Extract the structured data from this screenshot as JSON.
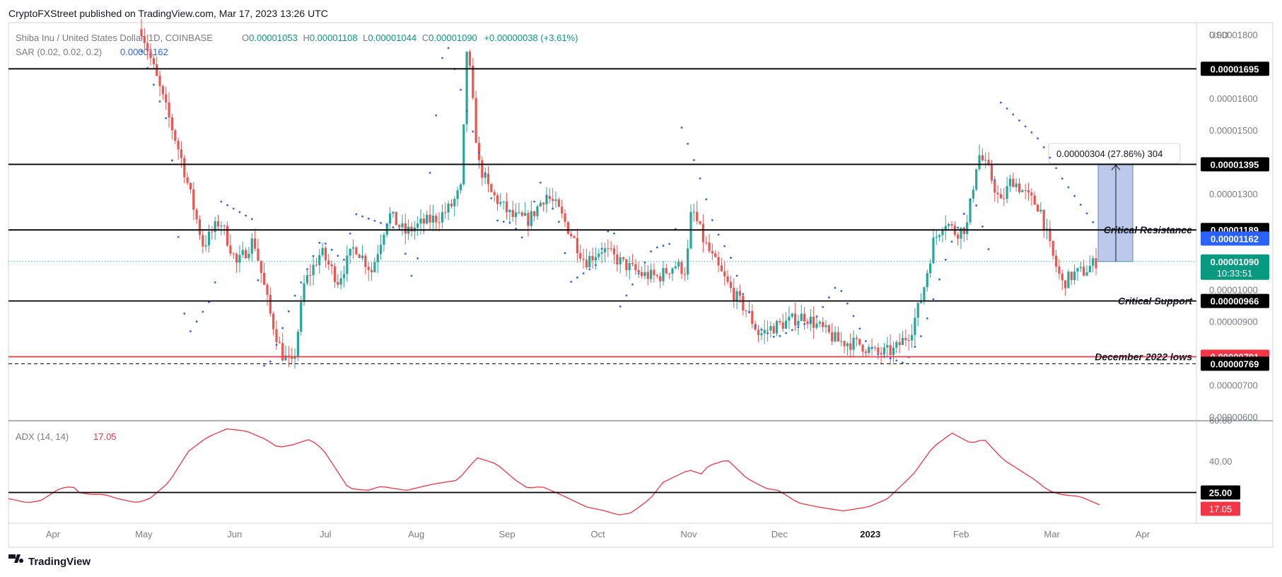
{
  "header": {
    "published": "CryptoFXStreet published on TradingView.com, Mar 17, 2023 13:26 UTC"
  },
  "legend": {
    "symbol": "Shiba Inu / United States Dollar, 1D, COINBASE",
    "o_label": "O",
    "o": "0.00001053",
    "h_label": "H",
    "h": "0.00001108",
    "l_label": "L",
    "l": "0.00001044",
    "c_label": "C",
    "c": "0.00001090",
    "change": "+0.00000038 (+3.61%)",
    "sar_label": "SAR (0.02, 0.02, 0.2)",
    "sar_value": "0.00001162",
    "adx_label": "ADX (14, 14)",
    "adx_value": "17.05"
  },
  "footer": {
    "brand": "TradingView"
  },
  "colors": {
    "up": "#26a69a",
    "down": "#ef5350",
    "sar": "#2962ff",
    "adx": "#f23645",
    "tag_black": "#000000",
    "tag_red": "#f23645",
    "tag_blue": "#2962ff",
    "tag_green": "#089981",
    "box_fill": "#b2c0e6"
  },
  "chart_data": [
    {
      "type": "candlestick",
      "title": "",
      "currency": "USD",
      "y_scale": "linear",
      "ylim": [
        5.9e-06,
        1.84e-05
      ],
      "x_ticks": [
        "Apr",
        "May",
        "Jun",
        "Jul",
        "Aug",
        "Sep",
        "Oct",
        "Nov",
        "Dec",
        "2023",
        "Feb",
        "Mar",
        "Apr"
      ],
      "y_ticks": [
        "0.00001800",
        "0.00001600",
        "0.00001500",
        "0.00001300",
        "0.00001000",
        "0.00000900",
        "0.00000700",
        "0.00000600"
      ],
      "last_price": "0.00001090",
      "countdown": "10:33:51",
      "levels": [
        {
          "value": 1.695e-05,
          "label": "0.00001695",
          "style": "solid",
          "color": "#000000",
          "annotation": ""
        },
        {
          "value": 1.395e-05,
          "label": "0.00001395",
          "style": "solid",
          "color": "#000000",
          "annotation": ""
        },
        {
          "value": 1.189e-05,
          "label": "0.00001189",
          "style": "solid",
          "color": "#000000",
          "annotation": "Critical Resistance"
        },
        {
          "value": 9.66e-06,
          "label": "0.00000966",
          "style": "solid",
          "color": "#000000",
          "annotation": "Critical Support"
        },
        {
          "value": 7.91e-06,
          "label": "0.00000791",
          "style": "solid",
          "color": "#f23645",
          "annotation": "December 2022 lows"
        },
        {
          "value": 7.69e-06,
          "label": "0.00000769",
          "style": "dashed",
          "color": "#000000",
          "annotation": ""
        }
      ],
      "sar_tag": "0.00001162",
      "measure": {
        "from": 1.09e-05,
        "to": 1.395e-05,
        "label": "0.00000304 (27.86%) 304"
      },
      "series": [
        {
          "name": "SHIBUSD",
          "kind": "ohlc",
          "trend": [
            [
              0,
              18.2
            ],
            [
              0.035,
              14.2
            ],
            [
              0.055,
              11.4
            ],
            [
              0.07,
              12.2
            ],
            [
              0.085,
              10.8
            ],
            [
              0.1,
              11.6
            ],
            [
              0.115,
              9.2
            ],
            [
              0.125,
              8.0
            ],
            [
              0.135,
              7.6
            ],
            [
              0.145,
              10.2
            ],
            [
              0.16,
              11.2
            ],
            [
              0.175,
              10.3
            ],
            [
              0.19,
              11.4
            ],
            [
              0.205,
              10.6
            ],
            [
              0.22,
              12.4
            ],
            [
              0.235,
              11.8
            ],
            [
              0.25,
              12.1
            ],
            [
              0.265,
              12.3
            ],
            [
              0.275,
              12.6
            ],
            [
              0.285,
              13.2
            ],
            [
              0.29,
              17.8
            ],
            [
              0.3,
              14.0
            ],
            [
              0.31,
              13.1
            ],
            [
              0.33,
              12.3
            ],
            [
              0.345,
              12.2
            ],
            [
              0.36,
              13.0
            ],
            [
              0.37,
              12.6
            ],
            [
              0.385,
              11.6
            ],
            [
              0.395,
              10.9
            ],
            [
              0.41,
              11.3
            ],
            [
              0.43,
              10.8
            ],
            [
              0.445,
              10.5
            ],
            [
              0.46,
              10.4
            ],
            [
              0.475,
              10.8
            ],
            [
              0.485,
              10.6
            ],
            [
              0.49,
              12.6
            ],
            [
              0.5,
              11.6
            ],
            [
              0.51,
              10.9
            ],
            [
              0.525,
              10.0
            ],
            [
              0.54,
              9.3
            ],
            [
              0.55,
              8.6
            ],
            [
              0.56,
              8.8
            ],
            [
              0.575,
              9.0
            ],
            [
              0.59,
              9.2
            ],
            [
              0.605,
              8.8
            ],
            [
              0.62,
              8.4
            ],
            [
              0.64,
              8.3
            ],
            [
              0.655,
              8.0
            ],
            [
              0.67,
              8.1
            ],
            [
              0.685,
              8.7
            ],
            [
              0.695,
              9.8
            ],
            [
              0.705,
              11.5
            ],
            [
              0.715,
              12.2
            ],
            [
              0.725,
              11.8
            ],
            [
              0.735,
              12.0
            ],
            [
              0.745,
              14.3
            ],
            [
              0.755,
              13.7
            ],
            [
              0.765,
              12.7
            ],
            [
              0.775,
              13.5
            ],
            [
              0.79,
              12.9
            ],
            [
              0.8,
              12.6
            ],
            [
              0.81,
              11.2
            ],
            [
              0.82,
              10.2
            ],
            [
              0.83,
              10.5
            ],
            [
              0.84,
              10.6
            ],
            [
              0.85,
              10.9
            ]
          ]
        },
        {
          "name": "SAR",
          "kind": "dots",
          "trend": [
            [
              0,
              17.5
            ],
            [
              0.025,
              15.1
            ],
            [
              0.04,
              8.5
            ],
            [
              0.065,
              9.9
            ],
            [
              0.07,
              12.8
            ],
            [
              0.1,
              12.2
            ],
            [
              0.11,
              7.3
            ],
            [
              0.135,
              9.7
            ],
            [
              0.16,
              11.6
            ],
            [
              0.18,
              10.9
            ],
            [
              0.19,
              12.4
            ],
            [
              0.23,
              11.9
            ],
            [
              0.24,
              10.4
            ],
            [
              0.25,
              11.4
            ],
            [
              0.27,
              18.0
            ],
            [
              0.295,
              15.0
            ],
            [
              0.31,
              13.2
            ],
            [
              0.315,
              12.2
            ],
            [
              0.33,
              12.1
            ],
            [
              0.34,
              11.6
            ],
            [
              0.355,
              13.4
            ],
            [
              0.375,
              11.9
            ],
            [
              0.38,
              10.2
            ],
            [
              0.405,
              10.8
            ],
            [
              0.42,
              12.3
            ],
            [
              0.425,
              9.4
            ],
            [
              0.455,
              11.3
            ],
            [
              0.475,
              11.5
            ],
            [
              0.48,
              15.2
            ],
            [
              0.495,
              13.8
            ],
            [
              0.51,
              12.0
            ],
            [
              0.525,
              11.0
            ],
            [
              0.545,
              8.9
            ],
            [
              0.565,
              8.5
            ],
            [
              0.6,
              9.1
            ],
            [
              0.62,
              10.2
            ],
            [
              0.645,
              8.4
            ],
            [
              0.655,
              8.0
            ],
            [
              0.68,
              7.7
            ],
            [
              0.695,
              8.6
            ],
            [
              0.705,
              9.7
            ],
            [
              0.72,
              11.4
            ],
            [
              0.74,
              13.0
            ],
            [
              0.745,
              12.5
            ],
            [
              0.755,
              11.2
            ],
            [
              0.765,
              15.9
            ],
            [
              0.8,
              14.7
            ],
            [
              0.82,
              13.5
            ],
            [
              0.85,
              12.0
            ]
          ]
        },
        {
          "name": "ADX",
          "kind": "line",
          "trend": [
            [
              0,
              22
            ],
            [
              0.015,
              20
            ],
            [
              0.025,
              21
            ],
            [
              0.04,
              27
            ],
            [
              0.05,
              28
            ],
            [
              0.055,
              25
            ],
            [
              0.065,
              24
            ],
            [
              0.075,
              24
            ],
            [
              0.085,
              22
            ],
            [
              0.1,
              20
            ],
            [
              0.11,
              22
            ],
            [
              0.125,
              30
            ],
            [
              0.14,
              45
            ],
            [
              0.155,
              52
            ],
            [
              0.17,
              56
            ],
            [
              0.185,
              55
            ],
            [
              0.2,
              51
            ],
            [
              0.21,
              47
            ],
            [
              0.22,
              48
            ],
            [
              0.235,
              51
            ],
            [
              0.245,
              46
            ],
            [
              0.265,
              27
            ],
            [
              0.28,
              26
            ],
            [
              0.29,
              28
            ],
            [
              0.31,
              26
            ],
            [
              0.33,
              29
            ],
            [
              0.35,
              31
            ],
            [
              0.365,
              42
            ],
            [
              0.38,
              39
            ],
            [
              0.395,
              31
            ],
            [
              0.405,
              27
            ],
            [
              0.415,
              28
            ],
            [
              0.43,
              24
            ],
            [
              0.45,
              18
            ],
            [
              0.465,
              16
            ],
            [
              0.475,
              14
            ],
            [
              0.485,
              15
            ],
            [
              0.5,
              22
            ],
            [
              0.51,
              30
            ],
            [
              0.53,
              36
            ],
            [
              0.54,
              34
            ],
            [
              0.545,
              38
            ],
            [
              0.56,
              41
            ],
            [
              0.575,
              32
            ],
            [
              0.59,
              27
            ],
            [
              0.6,
              26
            ],
            [
              0.615,
              20
            ],
            [
              0.63,
              18
            ],
            [
              0.65,
              16
            ],
            [
              0.67,
              18
            ],
            [
              0.685,
              22
            ],
            [
              0.705,
              34
            ],
            [
              0.72,
              47
            ],
            [
              0.735,
              54
            ],
            [
              0.75,
              49
            ],
            [
              0.76,
              51
            ],
            [
              0.775,
              41
            ],
            [
              0.79,
              35
            ],
            [
              0.8,
              31
            ],
            [
              0.81,
              26
            ],
            [
              0.82,
              24
            ],
            [
              0.835,
              23
            ],
            [
              0.85,
              19
            ]
          ]
        }
      ]
    },
    {
      "type": "line",
      "title": "",
      "ylim": [
        10,
        60
      ],
      "y_ticks": [
        "60.00",
        "40.00"
      ],
      "level": {
        "value": 25,
        "label": "25.00"
      },
      "last_value": "17.05"
    }
  ]
}
